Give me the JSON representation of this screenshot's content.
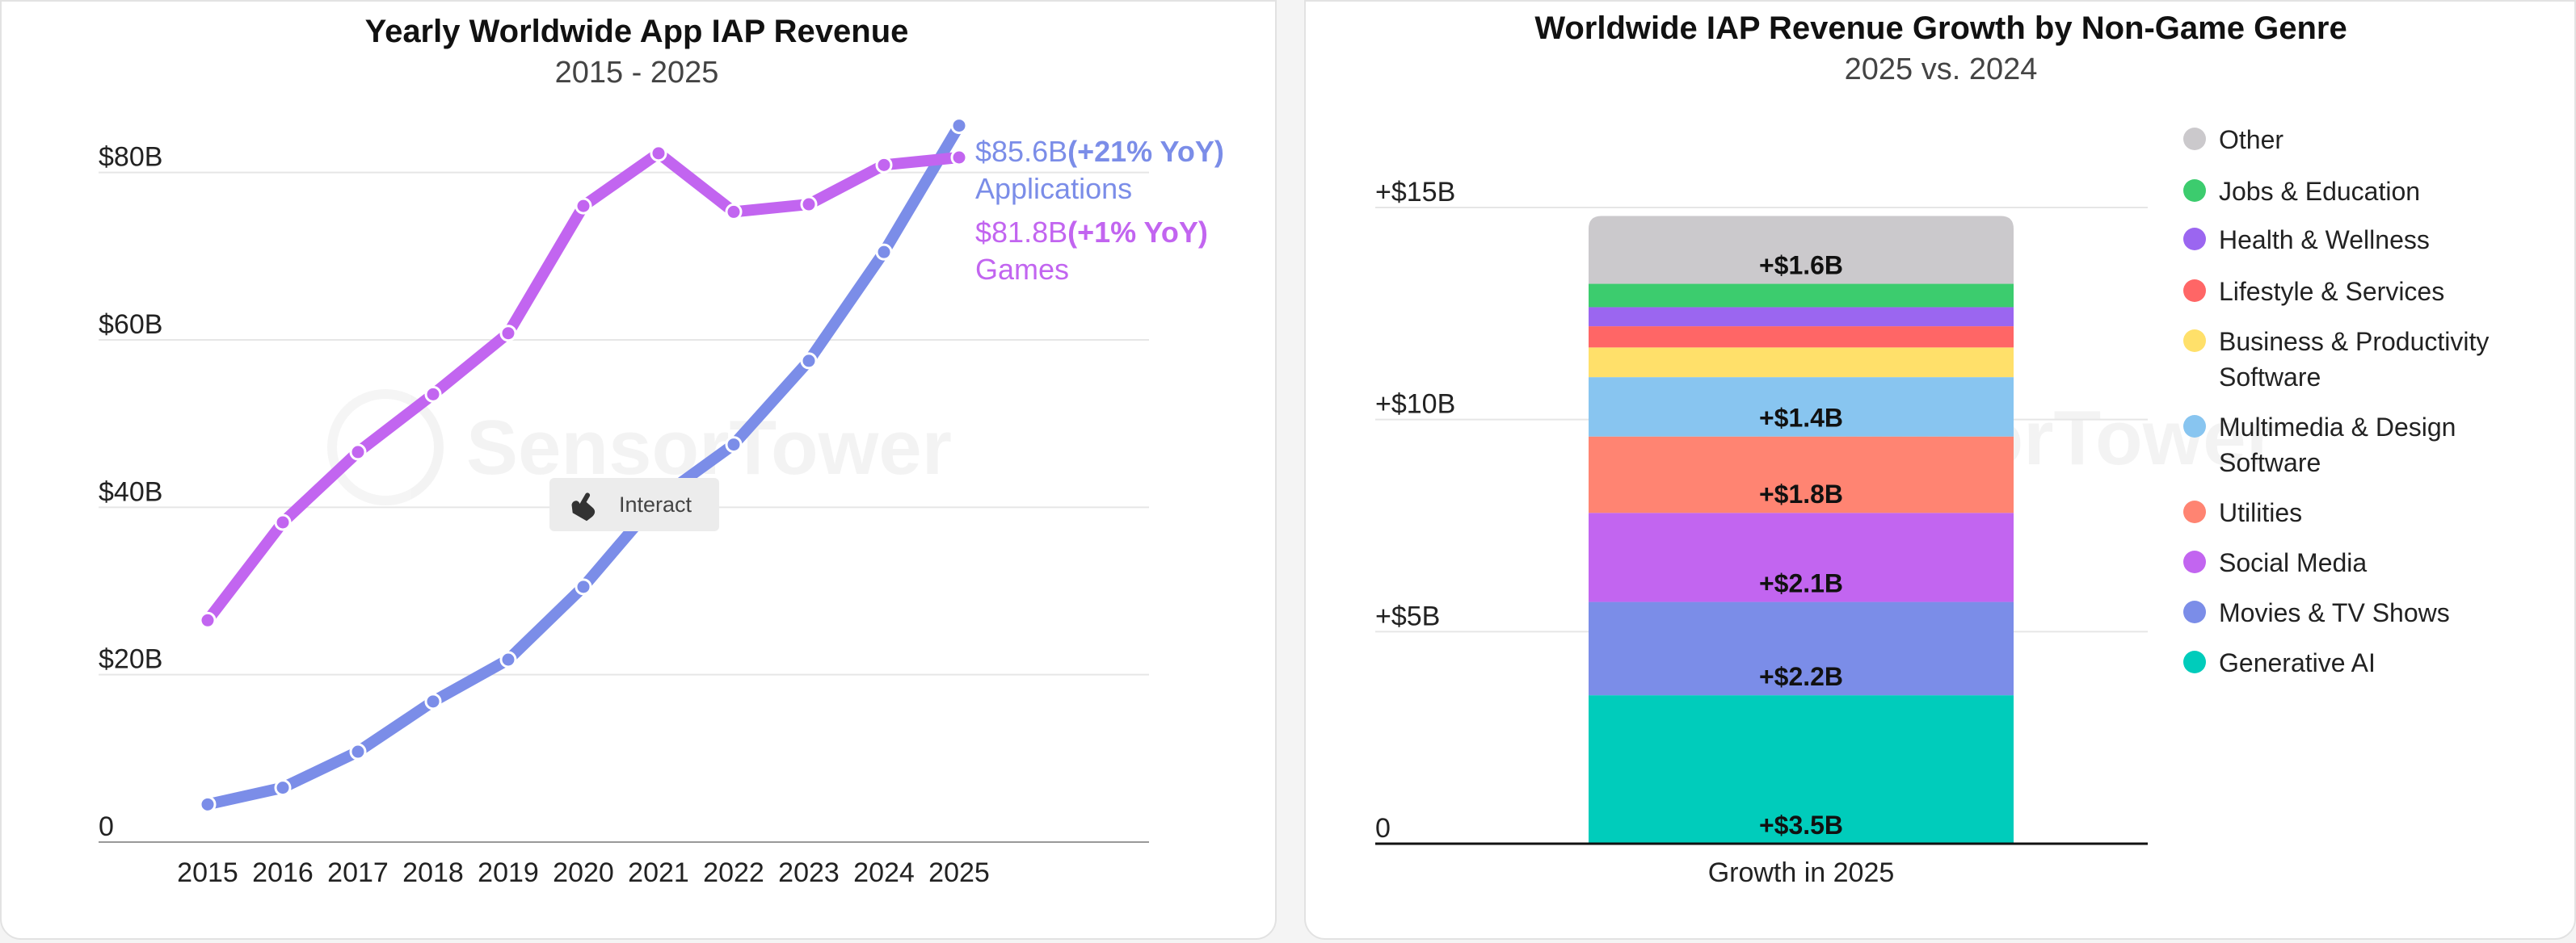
{
  "watermark": "SensorTower",
  "interact_label": "Interact",
  "chart_data": [
    {
      "type": "line",
      "title": "Yearly Worldwide App IAP Revenue",
      "subtitle": "2015 - 2025",
      "x": [
        "2015",
        "2016",
        "2017",
        "2018",
        "2019",
        "2020",
        "2021",
        "2022",
        "2023",
        "2024",
        "2025"
      ],
      "y_ticks": [
        0,
        20,
        40,
        60,
        80
      ],
      "y_tick_labels": [
        "0",
        "$20B",
        "$40B",
        "$60B",
        "$80B"
      ],
      "ylim": [
        0,
        90
      ],
      "grid": true,
      "series": [
        {
          "name": "Applications",
          "color": "#7b8de8",
          "values": [
            4.5,
            6.5,
            10.8,
            16.8,
            21.8,
            30.5,
            41,
            47.5,
            57.5,
            70.5,
            85.6
          ],
          "end_value_label": "$85.6B",
          "end_change_label": "(+21% YoY)"
        },
        {
          "name": "Games",
          "color": "#c265f0",
          "values": [
            26.5,
            38.2,
            46.6,
            53.5,
            60.8,
            76,
            82.3,
            75.3,
            76.2,
            80.9,
            81.8
          ],
          "end_value_label": "$81.8B",
          "end_change_label": "(+1% YoY)"
        }
      ]
    },
    {
      "type": "bar",
      "stacked": true,
      "title": "Worldwide IAP Revenue Growth by Non-Game Genre",
      "subtitle": "2025 vs. 2024",
      "categories": [
        "Growth in 2025"
      ],
      "y_ticks": [
        0,
        5,
        10,
        15
      ],
      "y_tick_labels": [
        "0",
        "+$5B",
        "+$10B",
        "+$15B"
      ],
      "ylim": [
        0,
        15
      ],
      "grid": true,
      "legend_position": "right",
      "series": [
        {
          "name": "Generative AI",
          "value": 3.5,
          "label": "+$3.5B",
          "color": "#00ccbb"
        },
        {
          "name": "Movies & TV Shows",
          "value": 2.2,
          "label": "+$2.2B",
          "color": "#7b8de8"
        },
        {
          "name": "Social Media",
          "value": 2.1,
          "label": "+$2.1B",
          "color": "#c265f0"
        },
        {
          "name": "Utilities",
          "value": 1.8,
          "label": "+$1.8B",
          "color": "#ff8472"
        },
        {
          "name": "Multimedia & Design Software",
          "value": 1.4,
          "label": "+$1.4B",
          "color": "#88c5f0"
        },
        {
          "name": "Business & Productivity Software",
          "value": 0.7,
          "label": "",
          "color": "#ffe06a"
        },
        {
          "name": "Lifestyle & Services",
          "value": 0.5,
          "label": "",
          "color": "#ff6666"
        },
        {
          "name": "Health & Wellness",
          "value": 0.45,
          "label": "",
          "color": "#9b66f0"
        },
        {
          "name": "Jobs & Education",
          "value": 0.55,
          "label": "",
          "color": "#3ccc6e"
        },
        {
          "name": "Other",
          "value": 1.6,
          "label": "+$1.6B",
          "color": "#cbc9cc"
        }
      ]
    }
  ]
}
